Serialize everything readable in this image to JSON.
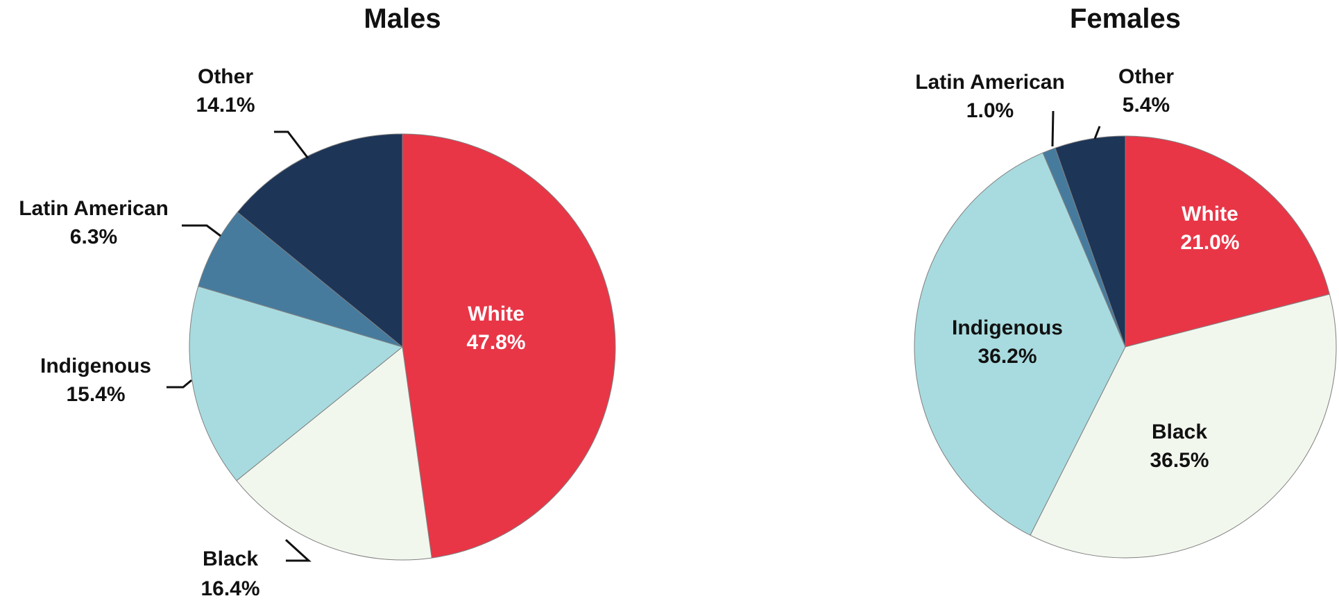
{
  "chart_data": [
    {
      "type": "pie",
      "title": "Males",
      "unit": "%",
      "slices": [
        {
          "name": "White",
          "value": 47.8,
          "label": "47.8%",
          "color": "#E83647",
          "text_color": "#ffffff"
        },
        {
          "name": "Black",
          "value": 16.4,
          "label": "16.4%",
          "color": "#F2F7EE",
          "text_color": "#111111"
        },
        {
          "name": "Indigenous",
          "value": 15.4,
          "label": "15.4%",
          "color": "#A8DBDF",
          "text_color": "#111111"
        },
        {
          "name": "Latin American",
          "value": 6.3,
          "label": "6.3%",
          "color": "#467B9E",
          "text_color": "#111111"
        },
        {
          "name": "Other",
          "value": 14.1,
          "label": "14.1%",
          "color": "#1D3557",
          "text_color": "#111111"
        }
      ]
    },
    {
      "type": "pie",
      "title": "Females",
      "unit": "%",
      "slices": [
        {
          "name": "White",
          "value": 21.0,
          "label": "21.0%",
          "color": "#E83647",
          "text_color": "#ffffff"
        },
        {
          "name": "Black",
          "value": 36.5,
          "label": "36.5%",
          "color": "#F2F7EE",
          "text_color": "#111111"
        },
        {
          "name": "Indigenous",
          "value": 36.2,
          "label": "36.2%",
          "color": "#A8DBDF",
          "text_color": "#111111"
        },
        {
          "name": "Latin American",
          "value": 1.0,
          "label": "1.0%",
          "color": "#467B9E",
          "text_color": "#111111"
        },
        {
          "name": "Other",
          "value": 5.4,
          "label": "5.4%",
          "color": "#1D3557",
          "text_color": "#111111"
        }
      ]
    }
  ]
}
